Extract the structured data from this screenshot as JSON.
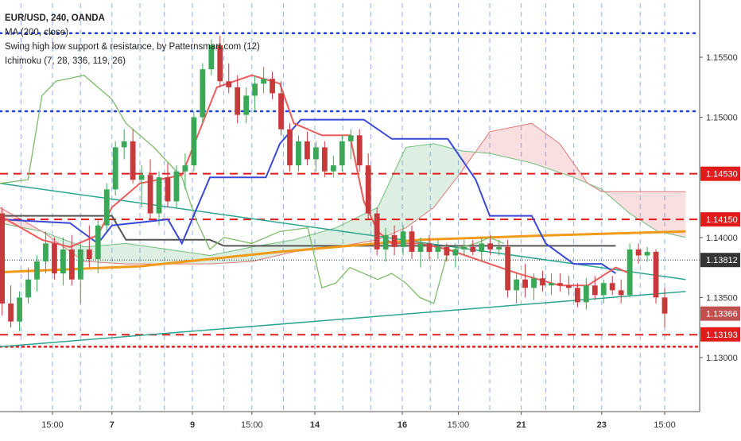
{
  "legend": {
    "symbol": "EUR/USD, 240, OANDA",
    "ma": "MA (200, close)",
    "swing": "Swing high low support & resistance, by Patternsmart.com (12)",
    "ichimoku": "Ichimoku (7, 28, 336, 119, 26)"
  },
  "chart_data": {
    "type": "candlestick",
    "y_axis": {
      "range": [
        1.1255,
        1.1595
      ],
      "ticks": [
        "1.15500",
        "1.15000",
        "1.14000",
        "1.13500",
        "1.13000"
      ],
      "tick_values": [
        1.155,
        1.15,
        1.14,
        1.135,
        1.13
      ]
    },
    "x_axis": {
      "range": [
        0,
        100
      ],
      "ticks": [
        "15:00",
        "7",
        "9",
        "15:00",
        "14",
        "16",
        "15:00",
        "21",
        "23",
        "15:00"
      ],
      "tick_x": [
        7.5,
        16,
        27.5,
        36,
        45,
        57.5,
        65.5,
        74.5,
        86,
        95
      ]
    },
    "price_labels": [
      {
        "text": "1.14530",
        "value": 1.1453,
        "style": "red"
      },
      {
        "text": "1.14150",
        "value": 1.1415,
        "style": "red"
      },
      {
        "text": "1.13812",
        "value": 1.13812,
        "style": "dark"
      },
      {
        "text": "1.13366",
        "value": 1.13366,
        "style": "close"
      },
      {
        "text": "1.13193",
        "value": 1.13193,
        "style": "red"
      }
    ],
    "candles": [
      [
        1.142,
        1.1425,
        1.1335,
        1.1345
      ],
      [
        1.1345,
        1.136,
        1.1325,
        1.133
      ],
      [
        1.133,
        1.1355,
        1.1322,
        1.135
      ],
      [
        1.135,
        1.1375,
        1.1345,
        1.1365
      ],
      [
        1.1365,
        1.1385,
        1.1355,
        1.138
      ],
      [
        1.138,
        1.1405,
        1.137,
        1.1395
      ],
      [
        1.1395,
        1.14,
        1.1365,
        1.137
      ],
      [
        1.137,
        1.14,
        1.136,
        1.139
      ],
      [
        1.139,
        1.1402,
        1.136,
        1.1365
      ],
      [
        1.1365,
        1.1395,
        1.1345,
        1.139
      ],
      [
        1.139,
        1.141,
        1.1375,
        1.1382
      ],
      [
        1.1382,
        1.1415,
        1.137,
        1.141
      ],
      [
        1.141,
        1.1445,
        1.1405,
        1.144
      ],
      [
        1.144,
        1.148,
        1.1435,
        1.1475
      ],
      [
        1.1475,
        1.149,
        1.1465,
        1.148
      ],
      [
        1.148,
        1.149,
        1.1445,
        1.1448
      ],
      [
        1.1448,
        1.146,
        1.1425,
        1.1452
      ],
      [
        1.1452,
        1.1465,
        1.1415,
        1.142
      ],
      [
        1.142,
        1.1455,
        1.141,
        1.145
      ],
      [
        1.145,
        1.1462,
        1.1425,
        1.143
      ],
      [
        1.143,
        1.146,
        1.1425,
        1.1455
      ],
      [
        1.1455,
        1.147,
        1.144,
        1.146
      ],
      [
        1.146,
        1.1505,
        1.1455,
        1.15
      ],
      [
        1.15,
        1.1545,
        1.1495,
        1.154
      ],
      [
        1.154,
        1.1565,
        1.1535,
        1.156
      ],
      [
        1.156,
        1.1568,
        1.1525,
        1.153
      ],
      [
        1.153,
        1.1545,
        1.152,
        1.1525
      ],
      [
        1.1525,
        1.1535,
        1.1495,
        1.1502
      ],
      [
        1.1502,
        1.1525,
        1.1495,
        1.1518
      ],
      [
        1.1518,
        1.1535,
        1.1505,
        1.1528
      ],
      [
        1.1528,
        1.1542,
        1.152,
        1.1532
      ],
      [
        1.1532,
        1.1538,
        1.1515,
        1.152
      ],
      [
        1.152,
        1.153,
        1.1485,
        1.149
      ],
      [
        1.149,
        1.1495,
        1.1455,
        1.146
      ],
      [
        1.146,
        1.1485,
        1.1455,
        1.148
      ],
      [
        1.148,
        1.1488,
        1.146,
        1.1465
      ],
      [
        1.1465,
        1.148,
        1.1455,
        1.1475
      ],
      [
        1.1475,
        1.148,
        1.145,
        1.1455
      ],
      [
        1.1455,
        1.1468,
        1.145,
        1.146
      ],
      [
        1.146,
        1.1485,
        1.1455,
        1.148
      ],
      [
        1.148,
        1.149,
        1.1465,
        1.1485
      ],
      [
        1.1485,
        1.149,
        1.1455,
        1.146
      ],
      [
        1.146,
        1.147,
        1.1415,
        1.142
      ],
      [
        1.142,
        1.1425,
        1.1385,
        1.139
      ],
      [
        1.139,
        1.1408,
        1.138,
        1.1402
      ],
      [
        1.1402,
        1.141,
        1.1385,
        1.1392
      ],
      [
        1.1392,
        1.141,
        1.1385,
        1.1405
      ],
      [
        1.1405,
        1.141,
        1.1382,
        1.1388
      ],
      [
        1.1388,
        1.14,
        1.1375,
        1.1395
      ],
      [
        1.1395,
        1.1402,
        1.1382,
        1.1388
      ],
      [
        1.1388,
        1.1398,
        1.1382,
        1.1392
      ],
      [
        1.1392,
        1.1395,
        1.138,
        1.1385
      ],
      [
        1.1385,
        1.1395,
        1.1375,
        1.139
      ],
      [
        1.139,
        1.1398,
        1.1385,
        1.1392
      ],
      [
        1.1392,
        1.1398,
        1.1385,
        1.1388
      ],
      [
        1.1388,
        1.14,
        1.138,
        1.1395
      ],
      [
        1.1395,
        1.1402,
        1.1385,
        1.139
      ],
      [
        1.139,
        1.1398,
        1.1385,
        1.1392
      ],
      [
        1.1392,
        1.1398,
        1.135,
        1.1356
      ],
      [
        1.1356,
        1.137,
        1.1345,
        1.1365
      ],
      [
        1.1365,
        1.1378,
        1.135,
        1.1358
      ],
      [
        1.1358,
        1.137,
        1.1348,
        1.1366
      ],
      [
        1.1366,
        1.1372,
        1.1355,
        1.136
      ],
      [
        1.136,
        1.137,
        1.1352,
        1.1362
      ],
      [
        1.1362,
        1.137,
        1.1355,
        1.136
      ],
      [
        1.136,
        1.1368,
        1.1352,
        1.1358
      ],
      [
        1.1358,
        1.1362,
        1.1342,
        1.1346
      ],
      [
        1.1346,
        1.1366,
        1.134,
        1.136
      ],
      [
        1.136,
        1.1368,
        1.1348,
        1.1352
      ],
      [
        1.1352,
        1.1365,
        1.1345,
        1.1362
      ],
      [
        1.1362,
        1.1368,
        1.1352,
        1.1356
      ],
      [
        1.1356,
        1.1365,
        1.1345,
        1.1352
      ],
      [
        1.1352,
        1.1395,
        1.135,
        1.139
      ],
      [
        1.139,
        1.1395,
        1.1378,
        1.1385
      ],
      [
        1.1385,
        1.1392,
        1.138,
        1.1388
      ],
      [
        1.1388,
        1.139,
        1.1345,
        1.135
      ],
      [
        1.135,
        1.1358,
        1.1325,
        1.13366
      ]
    ],
    "lines": {
      "ma200": [
        [
          0,
          1.1371
        ],
        [
          20,
          1.1376
        ],
        [
          40,
          1.1388
        ],
        [
          60,
          1.1398
        ],
        [
          80,
          1.1402
        ],
        [
          98,
          1.1405
        ]
      ],
      "tenkan": [
        [
          0,
          1.1418
        ],
        [
          6,
          1.1398
        ],
        [
          10,
          1.1392
        ],
        [
          14,
          1.1402
        ],
        [
          16,
          1.1425
        ],
        [
          20,
          1.1445
        ],
        [
          26,
          1.1452
        ],
        [
          31,
          1.1525
        ],
        [
          36,
          1.1535
        ],
        [
          40,
          1.1528
        ],
        [
          42,
          1.1495
        ],
        [
          46,
          1.1485
        ],
        [
          50,
          1.1485
        ],
        [
          52,
          1.143
        ],
        [
          54,
          1.1405
        ],
        [
          56,
          1.1395
        ],
        [
          60,
          1.1395
        ],
        [
          64,
          1.139
        ],
        [
          70,
          1.1378
        ],
        [
          74,
          1.137
        ],
        [
          80,
          1.136
        ],
        [
          84,
          1.136
        ],
        [
          88,
          1.1375
        ],
        [
          90,
          1.137
        ]
      ],
      "kijun": [
        [
          0,
          1.1415
        ],
        [
          10,
          1.1412
        ],
        [
          14,
          1.1395
        ],
        [
          16,
          1.141
        ],
        [
          24,
          1.1415
        ],
        [
          26,
          1.1395
        ],
        [
          30,
          1.145
        ],
        [
          38,
          1.145
        ],
        [
          40,
          1.1478
        ],
        [
          43,
          1.1498
        ],
        [
          52,
          1.1498
        ],
        [
          56,
          1.1482
        ],
        [
          64,
          1.1482
        ],
        [
          68,
          1.1448
        ],
        [
          70,
          1.1418
        ],
        [
          76,
          1.1418
        ],
        [
          78,
          1.1395
        ],
        [
          82,
          1.1378
        ],
        [
          86,
          1.1378
        ],
        [
          88,
          1.137
        ]
      ],
      "chikou": [
        [
          0,
          1.1445
        ],
        [
          4,
          1.1448
        ],
        [
          6,
          1.1518
        ],
        [
          8,
          1.153
        ],
        [
          12,
          1.1535
        ],
        [
          16,
          1.1515
        ],
        [
          18,
          1.1495
        ],
        [
          22,
          1.1475
        ],
        [
          26,
          1.145
        ],
        [
          28,
          1.1415
        ],
        [
          30,
          1.139
        ],
        [
          32,
          1.14
        ],
        [
          36,
          1.1395
        ],
        [
          40,
          1.1405
        ],
        [
          44,
          1.1408
        ],
        [
          46,
          1.1358
        ],
        [
          48,
          1.1362
        ],
        [
          50,
          1.1375
        ],
        [
          54,
          1.1365
        ],
        [
          56,
          1.137
        ],
        [
          58,
          1.1362
        ],
        [
          60,
          1.135
        ],
        [
          62,
          1.1345
        ],
        [
          64,
          1.1388
        ],
        [
          66,
          1.1392
        ],
        [
          68,
          1.1395
        ],
        [
          70,
          1.14
        ],
        [
          72,
          1.1395
        ]
      ],
      "senkou_a": [
        [
          0,
          1.1412
        ],
        [
          6,
          1.1405
        ],
        [
          12,
          1.1392
        ],
        [
          18,
          1.1395
        ],
        [
          24,
          1.139
        ],
        [
          30,
          1.1385
        ],
        [
          36,
          1.1392
        ],
        [
          42,
          1.1398
        ],
        [
          48,
          1.1408
        ],
        [
          54,
          1.1425
        ],
        [
          58,
          1.1475
        ],
        [
          62,
          1.1478
        ],
        [
          66,
          1.1472
        ],
        [
          70,
          1.147
        ],
        [
          76,
          1.1462
        ],
        [
          82,
          1.145
        ],
        [
          86,
          1.144
        ],
        [
          90,
          1.142
        ],
        [
          94,
          1.1405
        ],
        [
          98,
          1.14
        ]
      ],
      "senkou_b": [
        [
          0,
          1.1425
        ],
        [
          6,
          1.1405
        ],
        [
          12,
          1.138
        ],
        [
          18,
          1.1378
        ],
        [
          24,
          1.1378
        ],
        [
          30,
          1.1378
        ],
        [
          36,
          1.138
        ],
        [
          42,
          1.1388
        ],
        [
          48,
          1.1392
        ],
        [
          54,
          1.1398
        ],
        [
          58,
          1.1408
        ],
        [
          62,
          1.1425
        ],
        [
          66,
          1.1455
        ],
        [
          70,
          1.1488
        ],
        [
          76,
          1.1495
        ],
        [
          80,
          1.1478
        ],
        [
          84,
          1.1445
        ],
        [
          86,
          1.1438
        ],
        [
          90,
          1.1438
        ],
        [
          94,
          1.1438
        ],
        [
          98,
          1.1438
        ]
      ],
      "dark_level": [
        [
          0,
          1.1418
        ],
        [
          16,
          1.1418
        ],
        [
          18,
          1.1398
        ],
        [
          30,
          1.1398
        ],
        [
          32,
          1.1393
        ],
        [
          88,
          1.1393
        ]
      ]
    },
    "trendlines": [
      {
        "from": [
          0,
          1.1445
        ],
        "to": [
          98,
          1.1365
        ]
      },
      {
        "from": [
          0,
          1.1309
        ],
        "to": [
          98,
          1.1355
        ]
      }
    ],
    "levels": {
      "red_dashed": [
        1.1453,
        1.1415,
        1.1319
      ],
      "red_dotted": [
        1.1309
      ],
      "blue_dotted": [
        1.157,
        1.1505
      ],
      "dark_dotted": [
        1.13812
      ]
    },
    "grid": true,
    "legend_position": "top-left"
  }
}
